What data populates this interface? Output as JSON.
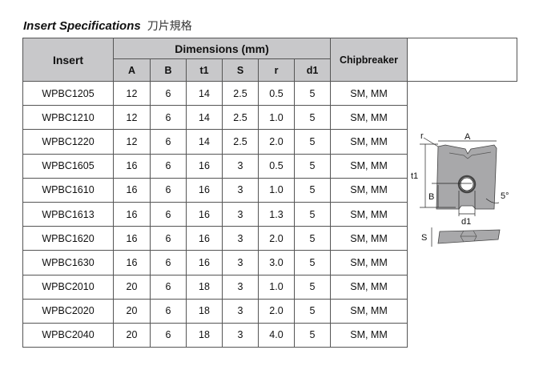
{
  "title": {
    "en": "Insert Specifications",
    "cn": "刀片規格"
  },
  "header": {
    "insert": "Insert",
    "dimensions": "Dimensions (mm)",
    "chipbreaker": "Chipbreaker",
    "cols": [
      "A",
      "B",
      "t1",
      "S",
      "r",
      "d1"
    ]
  },
  "rows": [
    {
      "insert": "WPBC1205",
      "A": "12",
      "B": "6",
      "t1": "14",
      "S": "2.5",
      "r": "0.5",
      "d1": "5",
      "chip": "SM, MM"
    },
    {
      "insert": "WPBC1210",
      "A": "12",
      "B": "6",
      "t1": "14",
      "S": "2.5",
      "r": "1.0",
      "d1": "5",
      "chip": "SM, MM"
    },
    {
      "insert": "WPBC1220",
      "A": "12",
      "B": "6",
      "t1": "14",
      "S": "2.5",
      "r": "2.0",
      "d1": "5",
      "chip": "SM, MM"
    },
    {
      "insert": "WPBC1605",
      "A": "16",
      "B": "6",
      "t1": "16",
      "S": "3",
      "r": "0.5",
      "d1": "5",
      "chip": "SM, MM"
    },
    {
      "insert": "WPBC1610",
      "A": "16",
      "B": "6",
      "t1": "16",
      "S": "3",
      "r": "1.0",
      "d1": "5",
      "chip": "SM, MM"
    },
    {
      "insert": "WPBC1613",
      "A": "16",
      "B": "6",
      "t1": "16",
      "S": "3",
      "r": "1.3",
      "d1": "5",
      "chip": "SM, MM"
    },
    {
      "insert": "WPBC1620",
      "A": "16",
      "B": "6",
      "t1": "16",
      "S": "3",
      "r": "2.0",
      "d1": "5",
      "chip": "SM, MM"
    },
    {
      "insert": "WPBC1630",
      "A": "16",
      "B": "6",
      "t1": "16",
      "S": "3",
      "r": "3.0",
      "d1": "5",
      "chip": "SM, MM"
    },
    {
      "insert": "WPBC2010",
      "A": "20",
      "B": "6",
      "t1": "18",
      "S": "3",
      "r": "1.0",
      "d1": "5",
      "chip": "SM, MM"
    },
    {
      "insert": "WPBC2020",
      "A": "20",
      "B": "6",
      "t1": "18",
      "S": "3",
      "r": "2.0",
      "d1": "5",
      "chip": "SM, MM"
    },
    {
      "insert": "WPBC2040",
      "A": "20",
      "B": "6",
      "t1": "18",
      "S": "3",
      "r": "4.0",
      "d1": "5",
      "chip": "SM, MM"
    }
  ],
  "diagram": {
    "labels": {
      "r": "r",
      "A": "A",
      "t1": "t1",
      "B": "B",
      "d1": "d1",
      "angle": "5°",
      "S": "S"
    }
  },
  "colors": {
    "header_bg": "#c8c8ca",
    "insert_fill": "#a8a8aa"
  }
}
